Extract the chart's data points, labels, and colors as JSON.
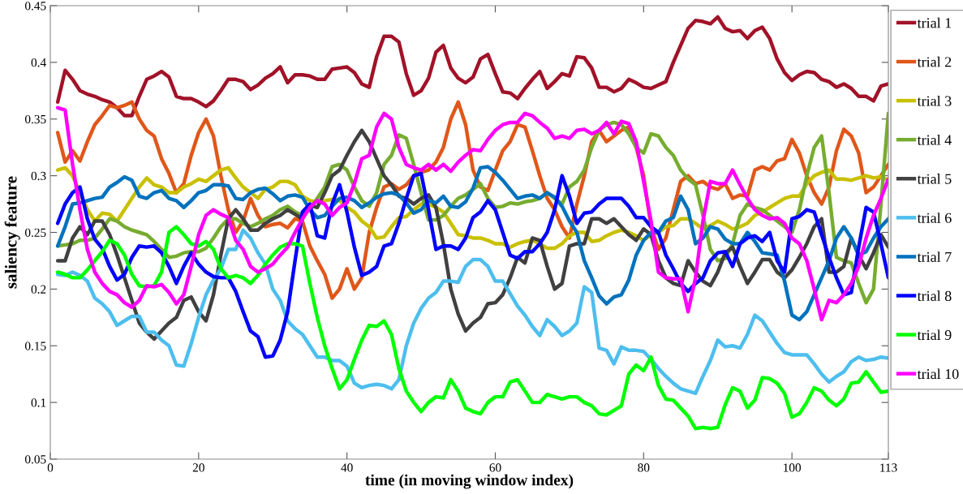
{
  "chart_data": {
    "type": "line",
    "xlabel": "time (in moving window index)",
    "ylabel": "saliency feature",
    "x": [
      1,
      2,
      3,
      4,
      5,
      6,
      7,
      8,
      9,
      10,
      11,
      12,
      13,
      14,
      15,
      16,
      17,
      18,
      19,
      20,
      21,
      22,
      23,
      24,
      25,
      26,
      27,
      28,
      29,
      30,
      31,
      32,
      33,
      34,
      35,
      36,
      37,
      38,
      39,
      40,
      41,
      42,
      43,
      44,
      45,
      46,
      47,
      48,
      49,
      50,
      51,
      52,
      53,
      54,
      55,
      56,
      57,
      58,
      59,
      60,
      61,
      62,
      63,
      64,
      65,
      66,
      67,
      68,
      69,
      70,
      71,
      72,
      73,
      74,
      75,
      76,
      77,
      78,
      79,
      80,
      81,
      82,
      83,
      84,
      85,
      86,
      87,
      88,
      89,
      90,
      91,
      92,
      93,
      94,
      95,
      96,
      97,
      98,
      99,
      100,
      101,
      102,
      103,
      104,
      105,
      106,
      107,
      108,
      109,
      110,
      111,
      112,
      113
    ],
    "xlim": [
      0,
      113
    ],
    "xticks": [
      0,
      20,
      40,
      60,
      80,
      100,
      113
    ],
    "ylim": [
      0.05,
      0.45
    ],
    "yticks": [
      0.05,
      {
        "value": 0.1,
        "label": "0.1"
      },
      0.15,
      {
        "value": 0.2,
        "label": "0.2"
      },
      0.25,
      {
        "value": 0.3,
        "label": "0.3"
      },
      0.35,
      {
        "value": 0.4,
        "label": "0.4"
      },
      0.45
    ],
    "grid": false,
    "legend": "right",
    "line_style": "solid",
    "marker": "none",
    "series": [
      {
        "name": "trial 1",
        "color": "#a11228",
        "values": [
          0.365,
          0.393,
          0.385,
          0.375,
          0.372,
          0.37,
          0.367,
          0.365,
          0.36,
          0.353,
          0.353,
          0.37,
          0.385,
          0.388,
          0.392,
          0.387,
          0.37,
          0.368,
          0.368,
          0.365,
          0.361,
          0.366,
          0.375,
          0.385,
          0.385,
          0.383,
          0.376,
          0.38,
          0.386,
          0.39,
          0.396,
          0.382,
          0.389,
          0.389,
          0.388,
          0.385,
          0.385,
          0.394,
          0.395,
          0.396,
          0.391,
          0.381,
          0.378,
          0.405,
          0.423,
          0.423,
          0.418,
          0.39,
          0.371,
          0.375,
          0.386,
          0.409,
          0.415,
          0.395,
          0.386,
          0.382,
          0.387,
          0.403,
          0.407,
          0.39,
          0.374,
          0.373,
          0.368,
          0.377,
          0.385,
          0.392,
          0.377,
          0.383,
          0.39,
          0.388,
          0.405,
          0.404,
          0.395,
          0.378,
          0.378,
          0.374,
          0.377,
          0.385,
          0.382,
          0.378,
          0.377,
          0.38,
          0.383,
          0.4,
          0.415,
          0.43,
          0.437,
          0.436,
          0.434,
          0.44,
          0.43,
          0.427,
          0.428,
          0.421,
          0.428,
          0.431,
          0.421,
          0.403,
          0.391,
          0.384,
          0.389,
          0.392,
          0.391,
          0.385,
          0.383,
          0.378,
          0.381,
          0.377,
          0.37,
          0.37,
          0.366,
          0.379,
          0.381
        ]
      },
      {
        "name": "trial 2",
        "color": "#e0571a",
        "values": [
          0.338,
          0.312,
          0.322,
          0.313,
          0.33,
          0.345,
          0.353,
          0.362,
          0.36,
          0.362,
          0.365,
          0.35,
          0.34,
          0.335,
          0.315,
          0.302,
          0.285,
          0.293,
          0.318,
          0.338,
          0.35,
          0.335,
          0.3,
          0.27,
          0.25,
          0.26,
          0.28,
          0.265,
          0.255,
          0.257,
          0.258,
          0.254,
          0.262,
          0.26,
          0.238,
          0.225,
          0.213,
          0.192,
          0.2,
          0.218,
          0.2,
          0.21,
          0.25,
          0.272,
          0.29,
          0.293,
          0.288,
          0.292,
          0.3,
          0.303,
          0.305,
          0.312,
          0.325,
          0.35,
          0.365,
          0.345,
          0.305,
          0.29,
          0.287,
          0.305,
          0.322,
          0.33,
          0.345,
          0.343,
          0.322,
          0.3,
          0.28,
          0.27,
          0.255,
          0.245,
          0.275,
          0.3,
          0.33,
          0.34,
          0.33,
          0.335,
          0.34,
          0.343,
          0.325,
          0.3,
          0.255,
          0.235,
          0.245,
          0.27,
          0.295,
          0.3,
          0.293,
          0.295,
          0.29,
          0.288,
          0.293,
          0.28,
          0.283,
          0.282,
          0.305,
          0.308,
          0.305,
          0.313,
          0.315,
          0.332,
          0.32,
          0.3,
          0.285,
          0.275,
          0.29,
          0.322,
          0.341,
          0.335,
          0.32,
          0.285,
          0.29,
          0.3,
          0.31
        ]
      },
      {
        "name": "trial 3",
        "color": "#c8c000",
        "values": [
          0.305,
          0.307,
          0.3,
          0.285,
          0.27,
          0.26,
          0.267,
          0.266,
          0.26,
          0.27,
          0.28,
          0.29,
          0.298,
          0.292,
          0.29,
          0.285,
          0.285,
          0.29,
          0.293,
          0.297,
          0.295,
          0.3,
          0.305,
          0.307,
          0.298,
          0.29,
          0.285,
          0.28,
          0.288,
          0.29,
          0.295,
          0.295,
          0.292,
          0.282,
          0.278,
          0.277,
          0.278,
          0.279,
          0.278,
          0.272,
          0.268,
          0.26,
          0.255,
          0.245,
          0.246,
          0.255,
          0.263,
          0.264,
          0.27,
          0.275,
          0.275,
          0.272,
          0.268,
          0.258,
          0.248,
          0.247,
          0.245,
          0.245,
          0.243,
          0.24,
          0.24,
          0.237,
          0.24,
          0.242,
          0.243,
          0.24,
          0.236,
          0.236,
          0.24,
          0.247,
          0.25,
          0.25,
          0.242,
          0.243,
          0.247,
          0.25,
          0.252,
          0.25,
          0.247,
          0.243,
          0.248,
          0.25,
          0.255,
          0.256,
          0.262,
          0.262,
          0.258,
          0.253,
          0.256,
          0.26,
          0.257,
          0.253,
          0.255,
          0.258,
          0.265,
          0.268,
          0.272,
          0.276,
          0.28,
          0.282,
          0.282,
          0.293,
          0.3,
          0.303,
          0.305,
          0.297,
          0.297,
          0.296,
          0.298,
          0.3,
          0.298,
          0.299,
          0.296
        ]
      },
      {
        "name": "trial 4",
        "color": "#77ac30",
        "values": [
          0.238,
          0.239,
          0.24,
          0.243,
          0.243,
          0.245,
          0.253,
          0.262,
          0.26,
          0.255,
          0.252,
          0.25,
          0.248,
          0.242,
          0.235,
          0.228,
          0.229,
          0.232,
          0.233,
          0.233,
          0.236,
          0.245,
          0.255,
          0.262,
          0.262,
          0.258,
          0.255,
          0.258,
          0.262,
          0.265,
          0.27,
          0.273,
          0.268,
          0.265,
          0.27,
          0.28,
          0.29,
          0.308,
          0.31,
          0.305,
          0.29,
          0.278,
          0.273,
          0.285,
          0.31,
          0.318,
          0.336,
          0.333,
          0.31,
          0.285,
          0.261,
          0.261,
          0.265,
          0.273,
          0.28,
          0.283,
          0.288,
          0.293,
          0.28,
          0.272,
          0.273,
          0.276,
          0.275,
          0.277,
          0.278,
          0.28,
          0.285,
          0.28,
          0.275,
          0.29,
          0.295,
          0.305,
          0.325,
          0.34,
          0.345,
          0.347,
          0.345,
          0.337,
          0.325,
          0.32,
          0.337,
          0.335,
          0.325,
          0.318,
          0.305,
          0.297,
          0.292,
          0.265,
          0.235,
          0.225,
          0.227,
          0.24,
          0.265,
          0.275,
          0.272,
          0.27,
          0.265,
          0.26,
          0.255,
          0.25,
          0.27,
          0.3,
          0.325,
          0.335,
          0.285,
          0.228,
          0.225,
          0.223,
          0.205,
          0.188,
          0.2,
          0.275,
          0.355
        ]
      },
      {
        "name": "trial 5",
        "color": "#404040",
        "values": [
          0.225,
          0.225,
          0.245,
          0.255,
          0.248,
          0.26,
          0.26,
          0.248,
          0.23,
          0.21,
          0.19,
          0.17,
          0.162,
          0.156,
          0.163,
          0.17,
          0.175,
          0.19,
          0.193,
          0.18,
          0.172,
          0.195,
          0.23,
          0.262,
          0.27,
          0.262,
          0.252,
          0.252,
          0.258,
          0.262,
          0.265,
          0.27,
          0.266,
          0.262,
          0.274,
          0.272,
          0.285,
          0.3,
          0.305,
          0.318,
          0.33,
          0.34,
          0.33,
          0.315,
          0.3,
          0.292,
          0.282,
          0.28,
          0.275,
          0.28,
          0.283,
          0.272,
          0.24,
          0.2,
          0.178,
          0.163,
          0.17,
          0.175,
          0.187,
          0.188,
          0.195,
          0.21,
          0.228,
          0.223,
          0.245,
          0.243,
          0.22,
          0.2,
          0.205,
          0.238,
          0.24,
          0.24,
          0.262,
          0.262,
          0.258,
          0.262,
          0.255,
          0.248,
          0.243,
          0.253,
          0.248,
          0.225,
          0.21,
          0.205,
          0.203,
          0.225,
          0.215,
          0.207,
          0.203,
          0.215,
          0.232,
          0.237,
          0.22,
          0.205,
          0.215,
          0.226,
          0.226,
          0.215,
          0.21,
          0.217,
          0.228,
          0.24,
          0.255,
          0.262,
          0.215,
          0.215,
          0.22,
          0.245,
          0.23,
          0.218,
          0.232,
          0.248,
          0.237
        ]
      },
      {
        "name": "trial 6",
        "color": "#4dbeee",
        "values": [
          0.213,
          0.212,
          0.215,
          0.212,
          0.207,
          0.192,
          0.187,
          0.18,
          0.168,
          0.172,
          0.176,
          0.176,
          0.162,
          0.162,
          0.155,
          0.15,
          0.133,
          0.132,
          0.152,
          0.175,
          0.195,
          0.208,
          0.218,
          0.235,
          0.235,
          0.252,
          0.245,
          0.232,
          0.222,
          0.2,
          0.19,
          0.172,
          0.165,
          0.16,
          0.15,
          0.14,
          0.14,
          0.137,
          0.137,
          0.132,
          0.117,
          0.113,
          0.115,
          0.116,
          0.115,
          0.112,
          0.12,
          0.15,
          0.17,
          0.183,
          0.192,
          0.197,
          0.207,
          0.207,
          0.206,
          0.22,
          0.226,
          0.226,
          0.22,
          0.207,
          0.207,
          0.196,
          0.185,
          0.177,
          0.167,
          0.159,
          0.173,
          0.167,
          0.159,
          0.163,
          0.17,
          0.202,
          0.197,
          0.148,
          0.146,
          0.134,
          0.149,
          0.146,
          0.146,
          0.145,
          0.138,
          0.13,
          0.123,
          0.117,
          0.112,
          0.11,
          0.108,
          0.123,
          0.137,
          0.155,
          0.149,
          0.15,
          0.148,
          0.16,
          0.177,
          0.172,
          0.162,
          0.152,
          0.144,
          0.142,
          0.142,
          0.142,
          0.134,
          0.125,
          0.118,
          0.123,
          0.127,
          0.136,
          0.14,
          0.137,
          0.138,
          0.14,
          0.139
        ]
      },
      {
        "name": "trial 7",
        "color": "#0072bd",
        "values": [
          0.238,
          0.255,
          0.275,
          0.276,
          0.278,
          0.28,
          0.281,
          0.29,
          0.294,
          0.299,
          0.296,
          0.282,
          0.28,
          0.285,
          0.287,
          0.28,
          0.278,
          0.272,
          0.278,
          0.285,
          0.287,
          0.292,
          0.292,
          0.291,
          0.28,
          0.279,
          0.285,
          0.288,
          0.289,
          0.284,
          0.278,
          0.282,
          0.283,
          0.281,
          0.27,
          0.263,
          0.265,
          0.273,
          0.28,
          0.281,
          0.278,
          0.272,
          0.276,
          0.281,
          0.284,
          0.285,
          0.283,
          0.276,
          0.267,
          0.27,
          0.278,
          0.276,
          0.282,
          0.273,
          0.272,
          0.277,
          0.289,
          0.307,
          0.308,
          0.303,
          0.296,
          0.288,
          0.28,
          0.282,
          0.283,
          0.28,
          0.285,
          0.281,
          0.273,
          0.26,
          0.25,
          0.225,
          0.21,
          0.194,
          0.187,
          0.193,
          0.195,
          0.208,
          0.23,
          0.243,
          0.25,
          0.25,
          0.26,
          0.263,
          0.282,
          0.27,
          0.24,
          0.245,
          0.255,
          0.253,
          0.244,
          0.24,
          0.24,
          0.25,
          0.242,
          0.232,
          0.231,
          0.23,
          0.207,
          0.177,
          0.173,
          0.18,
          0.195,
          0.21,
          0.225,
          0.245,
          0.255,
          0.245,
          0.23,
          0.233,
          0.245,
          0.255,
          0.262
        ]
      },
      {
        "name": "trial 8",
        "color": "#0000ff",
        "values": [
          0.258,
          0.275,
          0.285,
          0.29,
          0.262,
          0.244,
          0.236,
          0.22,
          0.208,
          0.213,
          0.228,
          0.238,
          0.237,
          0.238,
          0.232,
          0.22,
          0.205,
          0.22,
          0.232,
          0.222,
          0.215,
          0.211,
          0.21,
          0.21,
          0.198,
          0.18,
          0.163,
          0.158,
          0.14,
          0.141,
          0.155,
          0.18,
          0.225,
          0.268,
          0.275,
          0.247,
          0.245,
          0.275,
          0.292,
          0.268,
          0.237,
          0.212,
          0.215,
          0.22,
          0.238,
          0.24,
          0.258,
          0.28,
          0.3,
          0.302,
          0.27,
          0.235,
          0.238,
          0.238,
          0.235,
          0.245,
          0.263,
          0.268,
          0.278,
          0.27,
          0.25,
          0.23,
          0.227,
          0.233,
          0.233,
          0.24,
          0.25,
          0.27,
          0.3,
          0.282,
          0.258,
          0.267,
          0.268,
          0.275,
          0.28,
          0.28,
          0.28,
          0.273,
          0.263,
          0.263,
          0.255,
          0.25,
          0.23,
          0.218,
          0.205,
          0.198,
          0.205,
          0.21,
          0.225,
          0.232,
          0.233,
          0.22,
          0.24,
          0.245,
          0.247,
          0.242,
          0.25,
          0.225,
          0.215,
          0.262,
          0.264,
          0.27,
          0.268,
          0.248,
          0.228,
          0.21,
          0.195,
          0.197,
          0.237,
          0.272,
          0.268,
          0.24,
          0.21
        ]
      },
      {
        "name": "trial 9",
        "color": "#00ff00",
        "values": [
          0.215,
          0.213,
          0.21,
          0.21,
          0.217,
          0.225,
          0.233,
          0.243,
          0.24,
          0.23,
          0.213,
          0.203,
          0.202,
          0.203,
          0.215,
          0.25,
          0.255,
          0.248,
          0.24,
          0.238,
          0.242,
          0.235,
          0.218,
          0.21,
          0.212,
          0.21,
          0.205,
          0.212,
          0.222,
          0.23,
          0.237,
          0.24,
          0.24,
          0.238,
          0.205,
          0.175,
          0.15,
          0.13,
          0.112,
          0.12,
          0.138,
          0.155,
          0.168,
          0.167,
          0.172,
          0.16,
          0.13,
          0.11,
          0.1,
          0.092,
          0.1,
          0.105,
          0.104,
          0.12,
          0.11,
          0.095,
          0.092,
          0.09,
          0.1,
          0.105,
          0.105,
          0.118,
          0.12,
          0.11,
          0.1,
          0.1,
          0.107,
          0.105,
          0.103,
          0.105,
          0.105,
          0.1,
          0.097,
          0.09,
          0.089,
          0.093,
          0.097,
          0.125,
          0.133,
          0.128,
          0.14,
          0.115,
          0.103,
          0.102,
          0.095,
          0.088,
          0.077,
          0.078,
          0.077,
          0.078,
          0.098,
          0.113,
          0.11,
          0.095,
          0.102,
          0.122,
          0.121,
          0.117,
          0.108,
          0.087,
          0.09,
          0.1,
          0.113,
          0.11,
          0.102,
          0.097,
          0.103,
          0.117,
          0.118,
          0.127,
          0.118,
          0.109,
          0.11
        ]
      },
      {
        "name": "trial 10",
        "color": "#ff00ff",
        "values": [
          0.36,
          0.358,
          0.31,
          0.27,
          0.235,
          0.215,
          0.205,
          0.198,
          0.195,
          0.188,
          0.184,
          0.19,
          0.203,
          0.202,
          0.204,
          0.197,
          0.187,
          0.195,
          0.22,
          0.248,
          0.265,
          0.27,
          0.266,
          0.263,
          0.243,
          0.235,
          0.22,
          0.215,
          0.218,
          0.222,
          0.23,
          0.237,
          0.25,
          0.262,
          0.272,
          0.278,
          0.275,
          0.265,
          0.272,
          0.276,
          0.293,
          0.315,
          0.318,
          0.343,
          0.355,
          0.35,
          0.325,
          0.31,
          0.307,
          0.305,
          0.31,
          0.305,
          0.31,
          0.304,
          0.312,
          0.318,
          0.323,
          0.322,
          0.332,
          0.34,
          0.345,
          0.347,
          0.347,
          0.355,
          0.353,
          0.347,
          0.342,
          0.333,
          0.335,
          0.333,
          0.34,
          0.341,
          0.337,
          0.34,
          0.347,
          0.337,
          0.348,
          0.346,
          0.33,
          0.295,
          0.26,
          0.215,
          0.21,
          0.209,
          0.209,
          0.18,
          0.21,
          0.26,
          0.295,
          0.293,
          0.293,
          0.305,
          0.292,
          0.28,
          0.27,
          0.265,
          0.262,
          0.263,
          0.258,
          0.245,
          0.24,
          0.225,
          0.2,
          0.173,
          0.19,
          0.188,
          0.195,
          0.205,
          0.22,
          0.245,
          0.265,
          0.28,
          0.297
        ]
      }
    ]
  }
}
